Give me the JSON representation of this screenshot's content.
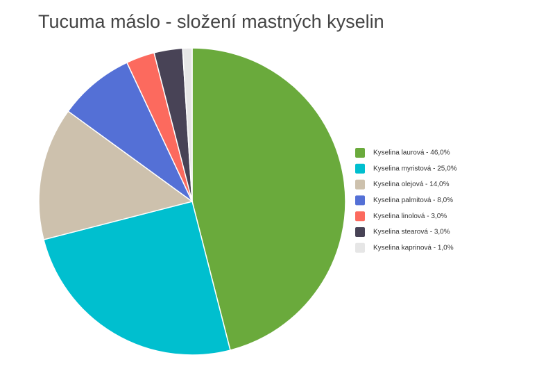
{
  "chart_data": {
    "type": "pie",
    "title": "Tucuma máslo - složení mastných kyselin",
    "categories": [
      "Kyselina laurová - 46,0%",
      "Kyselina myristová - 25,0%",
      "Kyselina olejová - 14,0%",
      "Kyselina palmitová - 8,0%",
      "Kyselina linolová - 3,0%",
      "Kyselina stearová - 3,0%",
      "Kyselina kaprinová - 1,0%"
    ],
    "values": [
      46,
      25,
      14,
      8,
      3,
      3,
      1
    ],
    "colors": [
      "#6aaa3c",
      "#00bfcf",
      "#cdc1ad",
      "#5470d6",
      "#fc6a5e",
      "#484356",
      "#e6e6e6"
    ],
    "legend": "right"
  }
}
